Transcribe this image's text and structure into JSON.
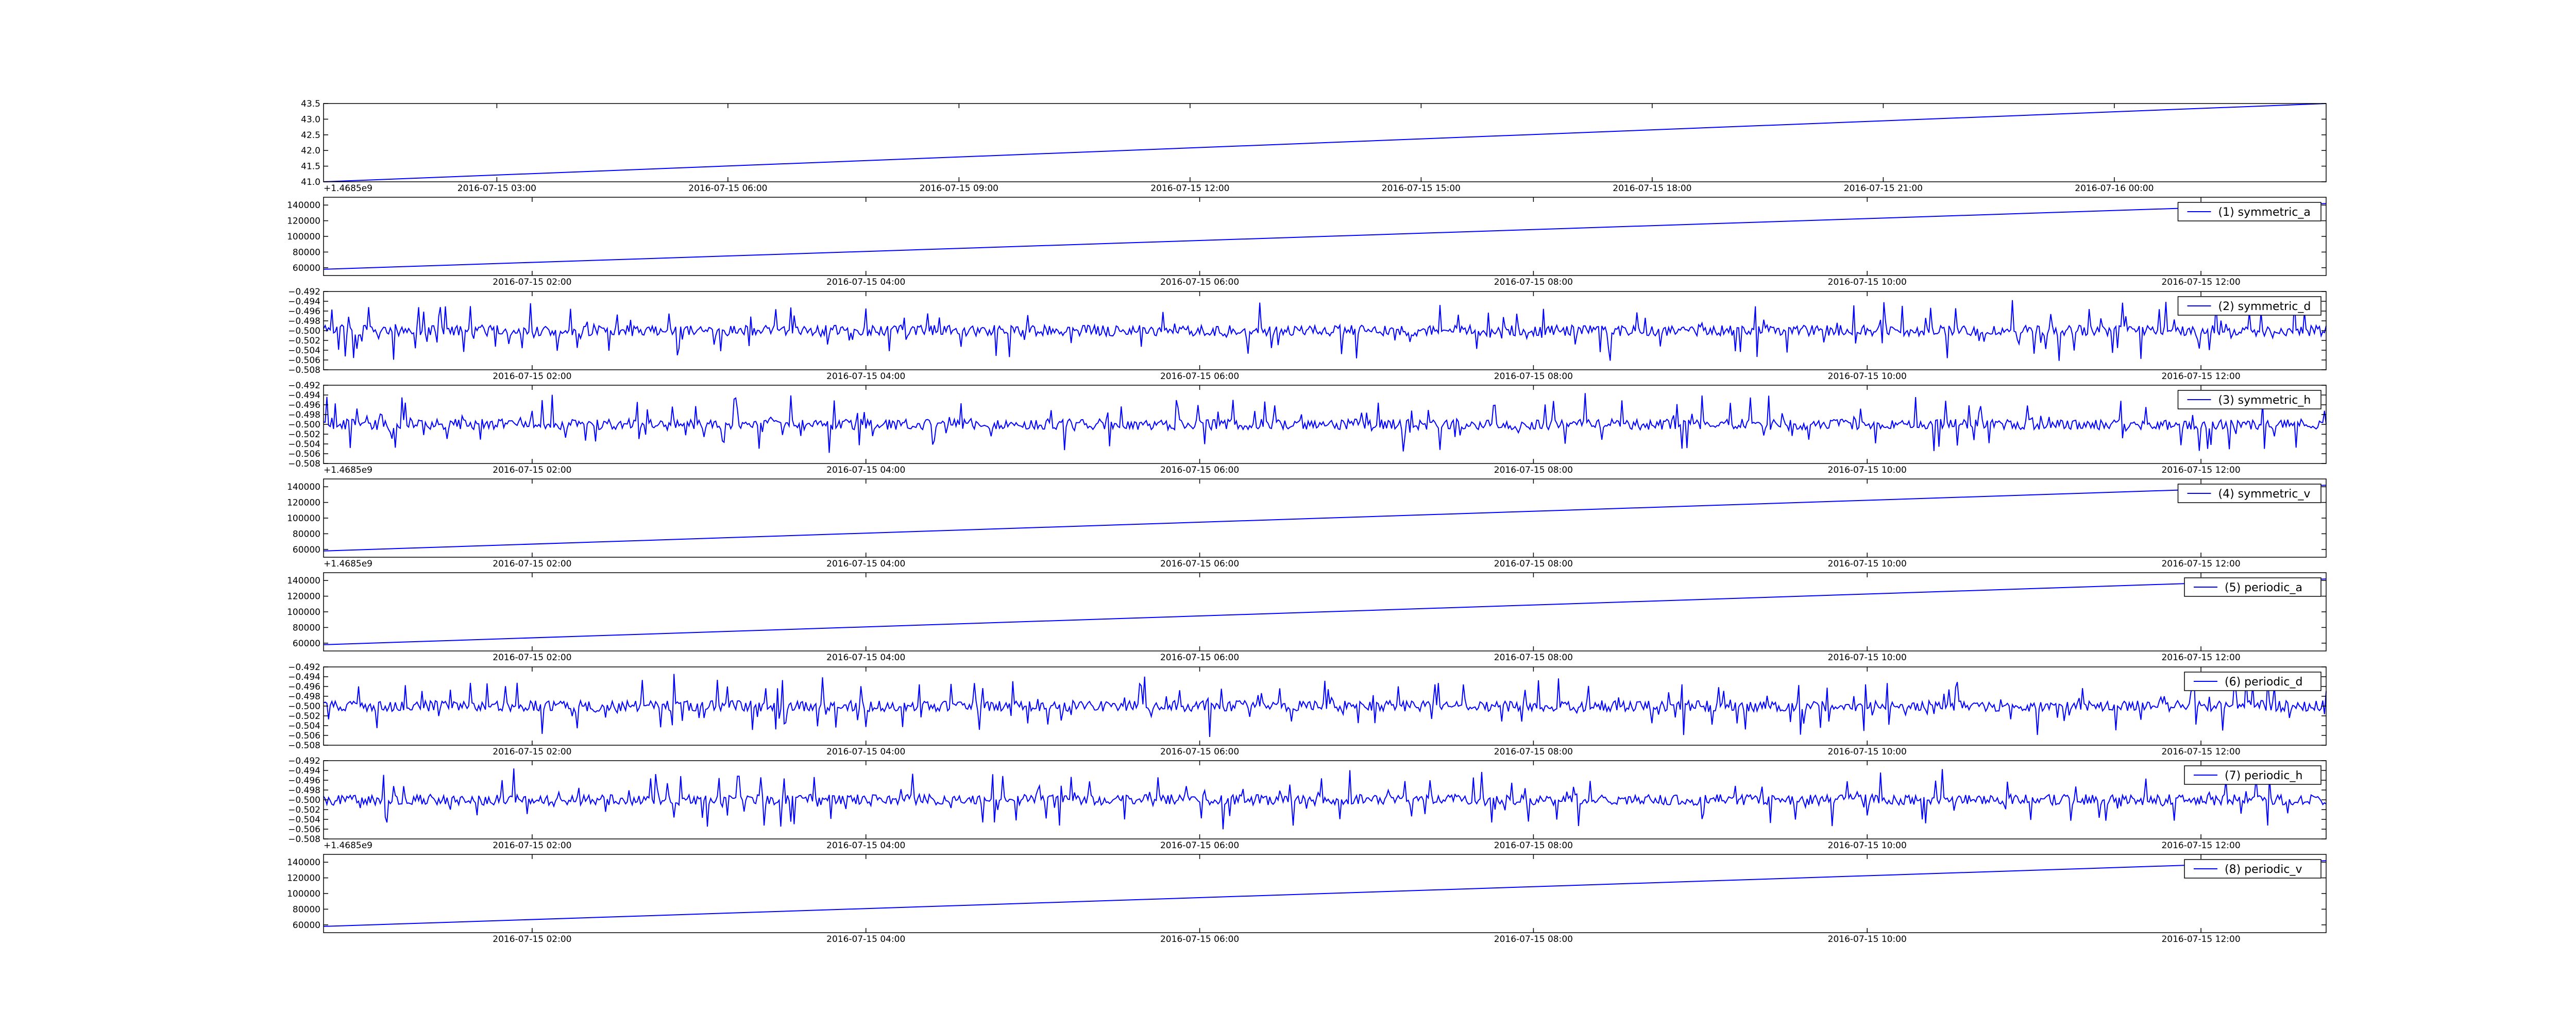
{
  "figure": {
    "line_color": "#0000ff",
    "axes_color": "#000000",
    "background": "#ffffff"
  },
  "chart_data": [
    {
      "type": "line",
      "name": "",
      "signal": "linear",
      "x_start": "2016-07-15 00:45",
      "x_end": "2016-07-16 02:45",
      "y_range": [
        41.0,
        43.5
      ],
      "ylim": [
        41.0,
        43.5
      ],
      "y_ticks": [
        "41.0",
        "41.5",
        "42.0",
        "42.5",
        "43.0",
        "43.5"
      ],
      "y_offset_label": "+1.4685e9",
      "x_ticks": [
        "2016-07-15 03:00",
        "2016-07-15 06:00",
        "2016-07-15 09:00",
        "2016-07-15 12:00",
        "2016-07-15 15:00",
        "2016-07-15 18:00",
        "2016-07-15 21:00",
        "2016-07-16 00:00"
      ],
      "legend": null
    },
    {
      "type": "line",
      "name": "(1) symmetric_a",
      "signal": "linear",
      "x_start": "2016-07-15 00:45",
      "x_end": "2016-07-15 12:45",
      "y_range": [
        58000,
        142000
      ],
      "ylim": [
        50000,
        150000
      ],
      "y_ticks": [
        "60000",
        "80000",
        "100000",
        "120000",
        "140000"
      ],
      "y_offset_label": "",
      "x_ticks": [
        "2016-07-15 02:00",
        "2016-07-15 04:00",
        "2016-07-15 06:00",
        "2016-07-15 08:00",
        "2016-07-15 10:00",
        "2016-07-15 12:00"
      ],
      "legend": "top-right"
    },
    {
      "type": "line",
      "name": "(2) symmetric_d",
      "signal": "noise",
      "x_start": "2016-07-15 00:45",
      "x_end": "2016-07-15 12:45",
      "y_center": -0.5,
      "ylim": [
        -0.508,
        -0.492
      ],
      "y_ticks": [
        "−0.492",
        "−0.494",
        "−0.496",
        "−0.498",
        "−0.500",
        "−0.502",
        "−0.504",
        "−0.506",
        "−0.508"
      ],
      "y_offset_label": "",
      "x_ticks": [
        "2016-07-15 02:00",
        "2016-07-15 04:00",
        "2016-07-15 06:00",
        "2016-07-15 08:00",
        "2016-07-15 10:00",
        "2016-07-15 12:00"
      ],
      "legend": "top-right"
    },
    {
      "type": "line",
      "name": "(3) symmetric_h",
      "signal": "noise",
      "x_start": "2016-07-15 00:45",
      "x_end": "2016-07-15 12:45",
      "y_center": -0.5,
      "ylim": [
        -0.508,
        -0.492
      ],
      "y_ticks": [
        "−0.492",
        "−0.494",
        "−0.496",
        "−0.498",
        "−0.500",
        "−0.502",
        "−0.504",
        "−0.506",
        "−0.508"
      ],
      "y_offset_label": "+1.4685e9",
      "x_ticks": [
        "2016-07-15 02:00",
        "2016-07-15 04:00",
        "2016-07-15 06:00",
        "2016-07-15 08:00",
        "2016-07-15 10:00",
        "2016-07-15 12:00"
      ],
      "legend": "top-right"
    },
    {
      "type": "line",
      "name": "(4) symmetric_v",
      "signal": "linear",
      "x_start": "2016-07-15 00:45",
      "x_end": "2016-07-15 12:45",
      "y_range": [
        58000,
        142000
      ],
      "ylim": [
        50000,
        150000
      ],
      "y_ticks": [
        "60000",
        "80000",
        "100000",
        "120000",
        "140000"
      ],
      "y_offset_label": "+1.4685e9",
      "x_ticks": [
        "2016-07-15 02:00",
        "2016-07-15 04:00",
        "2016-07-15 06:00",
        "2016-07-15 08:00",
        "2016-07-15 10:00",
        "2016-07-15 12:00"
      ],
      "legend": "top-right"
    },
    {
      "type": "line",
      "name": "(5) periodic_a",
      "signal": "linear",
      "x_start": "2016-07-15 00:45",
      "x_end": "2016-07-15 12:45",
      "y_range": [
        58000,
        142000
      ],
      "ylim": [
        50000,
        150000
      ],
      "y_ticks": [
        "60000",
        "80000",
        "100000",
        "120000",
        "140000"
      ],
      "y_offset_label": "",
      "x_ticks": [
        "2016-07-15 02:00",
        "2016-07-15 04:00",
        "2016-07-15 06:00",
        "2016-07-15 08:00",
        "2016-07-15 10:00",
        "2016-07-15 12:00"
      ],
      "legend": "top-right"
    },
    {
      "type": "line",
      "name": "(6) periodic_d",
      "signal": "noise",
      "x_start": "2016-07-15 00:45",
      "x_end": "2016-07-15 12:45",
      "y_center": -0.5,
      "ylim": [
        -0.508,
        -0.492
      ],
      "y_ticks": [
        "−0.492",
        "−0.494",
        "−0.496",
        "−0.498",
        "−0.500",
        "−0.502",
        "−0.504",
        "−0.506",
        "−0.508"
      ],
      "y_offset_label": "",
      "x_ticks": [
        "2016-07-15 02:00",
        "2016-07-15 04:00",
        "2016-07-15 06:00",
        "2016-07-15 08:00",
        "2016-07-15 10:00",
        "2016-07-15 12:00"
      ],
      "legend": "top-right"
    },
    {
      "type": "line",
      "name": "(7) periodic_h",
      "signal": "noise",
      "x_start": "2016-07-15 00:45",
      "x_end": "2016-07-15 12:45",
      "y_center": -0.5,
      "ylim": [
        -0.508,
        -0.492
      ],
      "y_ticks": [
        "−0.492",
        "−0.494",
        "−0.496",
        "−0.498",
        "−0.500",
        "−0.502",
        "−0.504",
        "−0.506",
        "−0.508"
      ],
      "y_offset_label": "+1.4685e9",
      "x_ticks": [
        "2016-07-15 02:00",
        "2016-07-15 04:00",
        "2016-07-15 06:00",
        "2016-07-15 08:00",
        "2016-07-15 10:00",
        "2016-07-15 12:00"
      ],
      "legend": "top-right"
    },
    {
      "type": "line",
      "name": "(8) periodic_v",
      "signal": "linear",
      "x_start": "2016-07-15 00:45",
      "x_end": "2016-07-15 12:45",
      "y_range": [
        58000,
        142000
      ],
      "ylim": [
        50000,
        150000
      ],
      "y_ticks": [
        "60000",
        "80000",
        "100000",
        "120000",
        "140000"
      ],
      "y_offset_label": "",
      "x_ticks": [
        "2016-07-15 02:00",
        "2016-07-15 04:00",
        "2016-07-15 06:00",
        "2016-07-15 08:00",
        "2016-07-15 10:00",
        "2016-07-15 12:00"
      ],
      "legend": "top-right"
    }
  ]
}
